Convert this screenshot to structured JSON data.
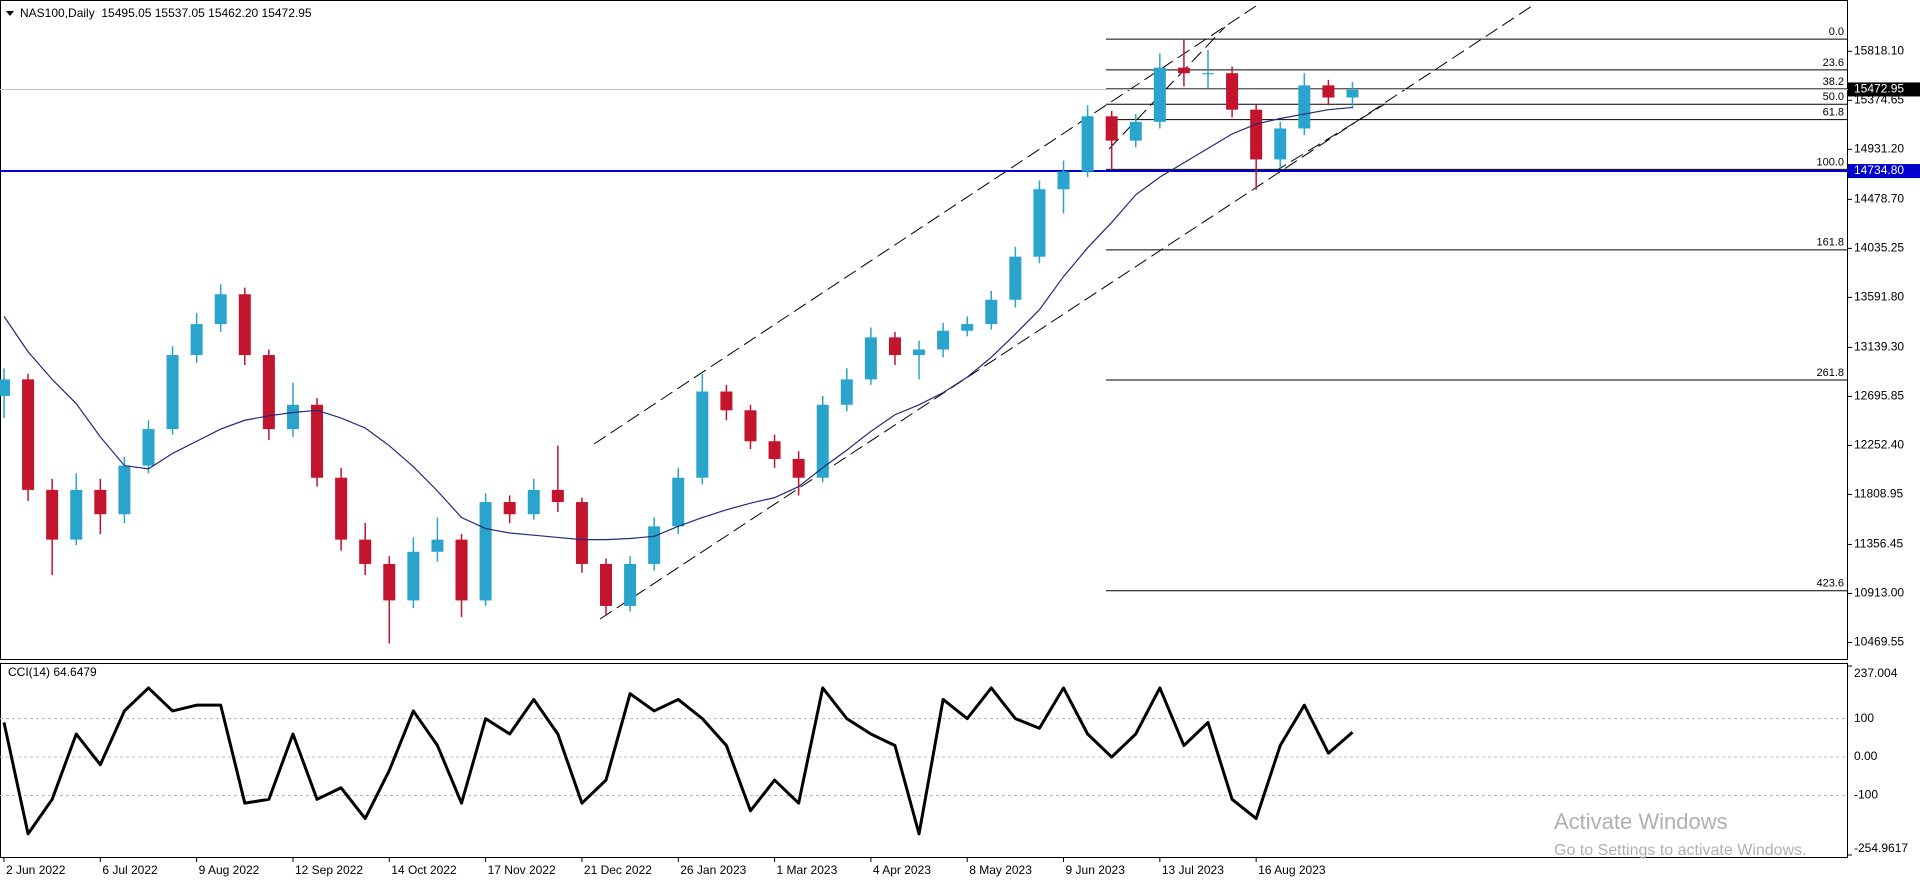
{
  "chart_data": [
    {
      "type": "candlestick",
      "title": "NAS100,Daily  15495.05 15537.05 15462.20 15472.95",
      "categories": [
        "2 Jun 2022",
        null,
        null,
        null,
        "6 Jul 2022",
        null,
        null,
        null,
        "9 Aug 2022",
        null,
        null,
        null,
        "12 Sep 2022",
        null,
        null,
        null,
        "14 Oct 2022",
        null,
        null,
        null,
        "17 Nov 2022",
        null,
        null,
        null,
        "21 Dec 2022",
        null,
        null,
        null,
        "26 Jan 2023",
        null,
        null,
        null,
        "1 Mar 2023",
        null,
        null,
        null,
        "4 Apr 2023",
        null,
        null,
        null,
        "8 May 2023",
        null,
        null,
        null,
        "9 Jun 2023",
        null,
        null,
        null,
        "13 Jul 2023",
        null,
        null,
        null,
        "16 Aug 2023",
        null,
        null,
        null,
        null
      ],
      "open": [
        12700,
        12850,
        11850,
        11400,
        11850,
        11630,
        12070,
        12400,
        13070,
        13350,
        13620,
        13070,
        12400,
        12620,
        11960,
        11400,
        11180,
        10850,
        11290,
        11400,
        10850,
        11740,
        11630,
        11850,
        11740,
        11180,
        10800,
        11180,
        11520,
        11960,
        12740,
        12570,
        12290,
        12130,
        11960,
        12620,
        12850,
        13230,
        13070,
        13120,
        13290,
        13350,
        13570,
        13960,
        14570,
        14730,
        15230,
        15010,
        15180,
        15670,
        15620,
        15620,
        15290,
        14840,
        15120,
        15510,
        15400
      ],
      "high": [
        12950,
        12900,
        11950,
        12000,
        11950,
        12150,
        12480,
        13150,
        13450,
        13710,
        13680,
        13120,
        12820,
        12680,
        12050,
        11550,
        11250,
        11420,
        11600,
        11450,
        11820,
        11800,
        11950,
        12250,
        11780,
        11230,
        11250,
        11600,
        12050,
        12900,
        12800,
        12620,
        12350,
        12200,
        12700,
        12950,
        13320,
        13280,
        13200,
        13360,
        13420,
        13650,
        14050,
        14650,
        14830,
        15330,
        15280,
        15250,
        15800,
        15930,
        15830,
        15680,
        15340,
        15180,
        15620,
        15560,
        15540
      ],
      "low": [
        12500,
        11750,
        11080,
        11350,
        11450,
        11550,
        12000,
        12350,
        13000,
        13280,
        12980,
        12300,
        12330,
        11880,
        11300,
        11080,
        10460,
        10780,
        11200,
        10700,
        10800,
        11550,
        11580,
        11650,
        11100,
        10710,
        10750,
        11120,
        11450,
        11900,
        12480,
        12220,
        12050,
        11800,
        11920,
        12560,
        12800,
        12980,
        12850,
        13050,
        13240,
        13300,
        13500,
        13900,
        14350,
        14680,
        14745,
        14950,
        15120,
        15500,
        15480,
        15220,
        14565,
        14760,
        15060,
        15330,
        15300
      ],
      "close": [
        12850,
        11850,
        11400,
        11850,
        11630,
        12070,
        12400,
        13070,
        13350,
        13620,
        13070,
        12400,
        12620,
        11960,
        11400,
        11180,
        10850,
        11290,
        11400,
        10850,
        11740,
        11630,
        11850,
        11740,
        11180,
        10800,
        11180,
        11520,
        11960,
        12740,
        12570,
        12290,
        12130,
        11960,
        12620,
        12850,
        13230,
        13070,
        13120,
        13290,
        13350,
        13570,
        13960,
        14570,
        14730,
        15230,
        15010,
        15180,
        15670,
        15620,
        15620,
        15290,
        14840,
        15120,
        15510,
        15400,
        15472.95
      ],
      "up_color": "#2aa4cc",
      "down_color": "#c2142c",
      "ma": {
        "color": "#1f2a7a",
        "values": [
          13420,
          13100,
          12850,
          12630,
          12330,
          12070,
          12040,
          12180,
          12290,
          12400,
          12480,
          12520,
          12550,
          12570,
          12500,
          12410,
          12250,
          12060,
          11840,
          11600,
          11500,
          11460,
          11440,
          11420,
          11400,
          11400,
          11410,
          11430,
          11520,
          11600,
          11670,
          11730,
          11780,
          11880,
          12050,
          12210,
          12380,
          12530,
          12620,
          12730,
          12870,
          13050,
          13260,
          13480,
          13780,
          14040,
          14270,
          14520,
          14680,
          14810,
          14940,
          15070,
          15160,
          15210,
          15250,
          15290,
          15310
        ]
      },
      "ylim": [
        10320,
        16228
      ],
      "yticks": [
        {
          "value": 15818.1,
          "label": "15818.10"
        },
        {
          "value": 15374.65,
          "label": "15374.65"
        },
        {
          "value": 14931.2,
          "label": "14931.20"
        },
        {
          "value": 14478.7,
          "label": "14478.70"
        },
        {
          "value": 14035.25,
          "label": "14035.25"
        },
        {
          "value": 13591.8,
          "label": "13591.80"
        },
        {
          "value": 13139.3,
          "label": "13139.30"
        },
        {
          "value": 12695.85,
          "label": "12695.85"
        },
        {
          "value": 12252.4,
          "label": "12252.40"
        },
        {
          "value": 11808.95,
          "label": "11808.95"
        },
        {
          "value": 11356.45,
          "label": "11356.45"
        },
        {
          "value": 10913,
          "label": "10913.00"
        },
        {
          "value": 10469.55,
          "label": "10469.55"
        }
      ],
      "bid": 15472.95,
      "hline": {
        "value": 14734.8,
        "label": "14734.80",
        "color": "#0000cd"
      },
      "fibonacci": [
        {
          "label": "0.0",
          "value": 15928
        },
        {
          "label": "23.6",
          "value": 15650
        },
        {
          "label": "38.2",
          "value": 15478
        },
        {
          "label": "50.0",
          "value": 15339
        },
        {
          "label": "61.8",
          "value": 15200
        },
        {
          "label": "100.0",
          "value": 14750
        },
        {
          "label": "161.8",
          "value": 14022
        },
        {
          "label": "261.8",
          "value": 12844
        },
        {
          "label": "423.6",
          "value": 10938
        }
      ]
    },
    {
      "type": "line",
      "title": "CCI(14) 64.6479",
      "color": "#000000",
      "values": [
        90,
        -200,
        -110,
        60,
        -20,
        120,
        180,
        120,
        135,
        135,
        -120,
        -110,
        60,
        -110,
        -80,
        -160,
        -35,
        120,
        30,
        -120,
        100,
        60,
        150,
        60,
        -120,
        -60,
        165,
        120,
        150,
        100,
        30,
        -140,
        -60,
        -120,
        180,
        100,
        60,
        30,
        -200,
        150,
        100,
        180,
        100,
        75,
        180,
        60,
        0,
        60,
        180,
        30,
        90,
        -110,
        -160,
        30,
        135,
        10,
        64.6479
      ],
      "ylim": [
        -254.9617,
        237.004
      ],
      "yticks": [
        237.004,
        100,
        {
          "value": 0,
          "label": "0.00"
        },
        -100,
        -254.9617
      ],
      "grid": true
    }
  ],
  "watermark": {
    "title": "Activate Windows",
    "subtitle": "Go to Settings to activate Windows."
  }
}
